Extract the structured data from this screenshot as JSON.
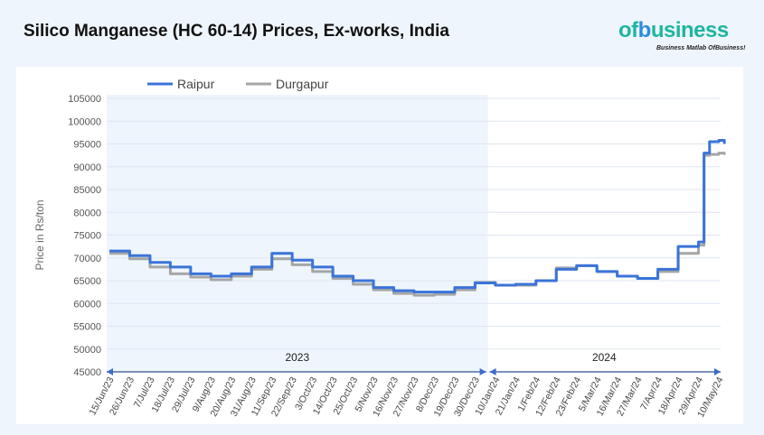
{
  "title": "Silico Manganese (HC 60-14) Prices, Ex-works, India",
  "logo": {
    "text": "ofbusiness",
    "tagline": "Business Matlab OfBusiness!"
  },
  "colors": {
    "raipur": "#3a74d8",
    "durgapur": "#a6a6a6",
    "shade_2023": "#eef5fc"
  },
  "chart_data": {
    "type": "line",
    "title": "",
    "xlabel": "",
    "ylabel": "Price in Rs/ton",
    "ylim": [
      45000,
      105000
    ],
    "yticks": [
      45000,
      50000,
      55000,
      60000,
      65000,
      70000,
      75000,
      80000,
      85000,
      90000,
      95000,
      100000,
      105000
    ],
    "grid": true,
    "legend": "top-left",
    "xtick_labels": [
      "15/Jun/23",
      "26/Jun/23",
      "7/Jul/23",
      "18/Jul/23",
      "29/Jul/23",
      "9/Aug/23",
      "20/Aug/23",
      "31/Aug/23",
      "11/Sep/23",
      "22/Sep/23",
      "3/Oct/23",
      "14/Oct/23",
      "25/Oct/23",
      "5/Nov/23",
      "16/Nov/23",
      "27/Nov/23",
      "8/Dec/23",
      "19/Dec/23",
      "30/Dec/23",
      "10/Jan/24",
      "21/Jan/24",
      "1/Feb/24",
      "12/Feb/24",
      "23/Feb/24",
      "5/Mar/24",
      "16/Mar/24",
      "27/Mar/24",
      "7/Apr/24",
      "18/Apr/24",
      "29/Apr/24",
      "10/May/24"
    ],
    "year_groups": [
      "2023",
      "2024"
    ],
    "x": [
      "2023-06-15",
      "2023-06-26",
      "2023-07-07",
      "2023-07-18",
      "2023-07-29",
      "2023-08-09",
      "2023-08-20",
      "2023-08-31",
      "2023-09-11",
      "2023-09-22",
      "2023-10-03",
      "2023-10-14",
      "2023-10-25",
      "2023-11-05",
      "2023-11-16",
      "2023-11-27",
      "2023-12-08",
      "2023-12-19",
      "2023-12-30",
      "2024-01-10",
      "2024-01-21",
      "2024-02-01",
      "2024-02-12",
      "2024-02-23",
      "2024-03-05",
      "2024-03-16",
      "2024-03-27",
      "2024-04-07",
      "2024-04-18",
      "2024-04-29",
      "2024-05-02",
      "2024-05-05",
      "2024-05-10",
      "2024-05-13"
    ],
    "series": [
      {
        "name": "Raipur",
        "values": [
          71500,
          70500,
          69000,
          68000,
          66500,
          66000,
          66500,
          68000,
          71000,
          69500,
          68000,
          66000,
          65000,
          63500,
          62800,
          62500,
          62500,
          63500,
          64500,
          64000,
          64200,
          65000,
          67500,
          68300,
          67000,
          66000,
          65500,
          67500,
          72500,
          73500,
          93000,
          95500,
          95800,
          95000
        ]
      },
      {
        "name": "Durgapur",
        "values": [
          71000,
          69800,
          68000,
          66500,
          65800,
          65200,
          66000,
          67500,
          69800,
          68500,
          67000,
          65500,
          64200,
          63000,
          62200,
          61800,
          62000,
          63000,
          64600,
          64000,
          64000,
          65000,
          67800,
          68300,
          67000,
          66000,
          65500,
          67000,
          71000,
          72800,
          92500,
          92700,
          93000,
          92600
        ]
      }
    ]
  }
}
